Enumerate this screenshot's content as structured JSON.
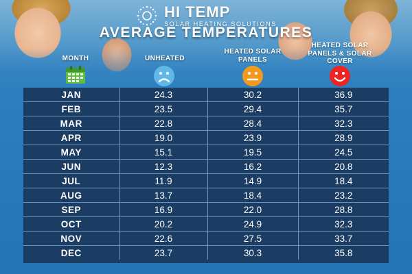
{
  "brand": {
    "name": "HI TEMP",
    "tagline": "SOLAR HEATING SOLUTIONS"
  },
  "colors": {
    "background_blue": "#2f7fbf",
    "table_navy": "#1b3d63",
    "sad_face": "#5fb8e8",
    "neutral_face": "#f39a1e",
    "happy_face": "#ec2424",
    "calendar_green": "#5cbf3e"
  },
  "icons": [
    "calendar-icon",
    "sad-face-icon",
    "neutral-face-icon",
    "happy-face-icon",
    "sun-logo-icon"
  ],
  "chart_data": {
    "type": "table",
    "title": "AVERAGE TEMPERATURES",
    "columns": [
      "MONTH",
      "UNHEATED",
      "HEATED SOLAR PANELS",
      "HEATED SOLAR PANELS & SOLAR COVER"
    ],
    "categories": [
      "JAN",
      "FEB",
      "MAR",
      "APR",
      "MAY",
      "JUN",
      "JUL",
      "AUG",
      "SEP",
      "OCT",
      "NOV",
      "DEC"
    ],
    "series": [
      {
        "name": "UNHEATED",
        "values": [
          "24.3",
          "23.5",
          "22.8",
          "19.0",
          "15.1",
          "12.3",
          "11.9",
          "13.7",
          "16.9",
          "20.2",
          "22.6",
          "23.7"
        ]
      },
      {
        "name": "HEATED SOLAR PANELS",
        "values": [
          "30.2",
          "29.4",
          "28.4",
          "23.9",
          "19.5",
          "16.2",
          "14.9",
          "18.4",
          "22.0",
          "24.9",
          "27.5",
          "30.3"
        ]
      },
      {
        "name": "HEATED SOLAR PANELS & SOLAR COVER",
        "values": [
          "36.9",
          "35.7",
          "32.3",
          "28.9",
          "24.5",
          "20.8",
          "18.4",
          "23.2",
          "28.8",
          "32.3",
          "33.7",
          "35.8"
        ]
      }
    ]
  }
}
